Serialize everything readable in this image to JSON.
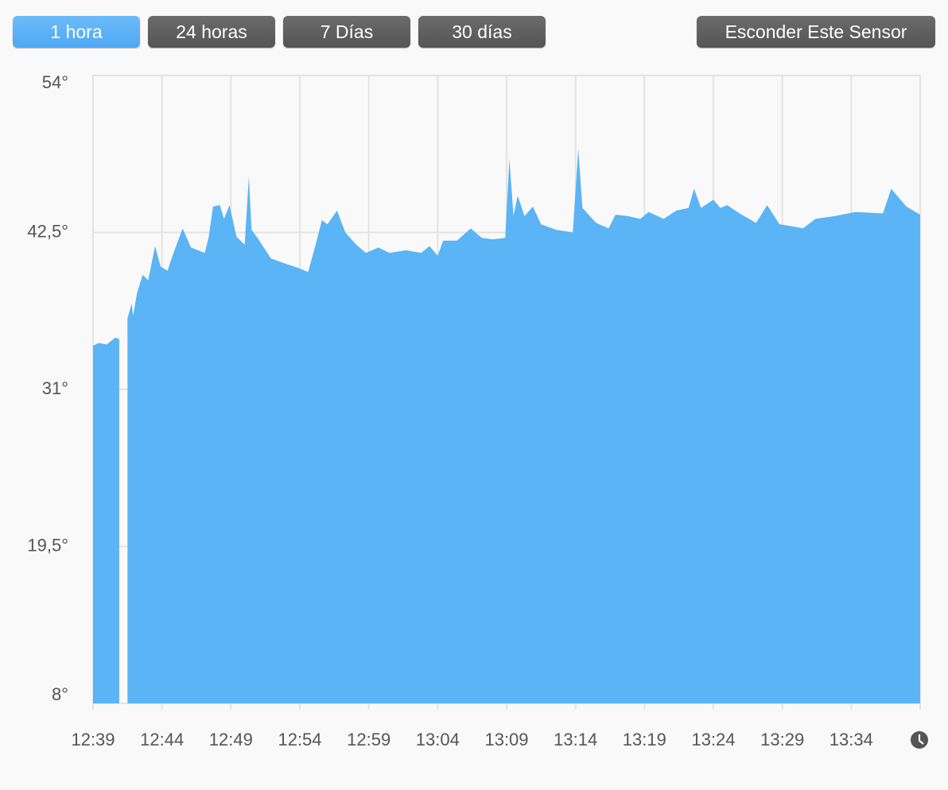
{
  "buttons": [
    {
      "label": "1 hora",
      "active": true
    },
    {
      "label": "24 horas",
      "active": false
    },
    {
      "label": "7 Días",
      "active": false
    },
    {
      "label": "30 días",
      "active": false
    }
  ],
  "hide_button": "Esconder Este Sensor",
  "chart_data": {
    "type": "area",
    "color": "#5ab4f5",
    "grid": true,
    "x": [
      759.0,
      759.4,
      760.0,
      760.6,
      760.9,
      761.2,
      761.5,
      761.8,
      761.9,
      762.2,
      762.6,
      763.0,
      763.5,
      763.9,
      764.4,
      764.8,
      765.5,
      766.1,
      767.1,
      767.4,
      767.7,
      768.2,
      768.5,
      768.9,
      769.4,
      770.0,
      770.3,
      770.5,
      771.0,
      771.9,
      773.0,
      773.9,
      774.6,
      775.2,
      775.6,
      776.0,
      776.7,
      777.3,
      778.1,
      778.8,
      779.7,
      780.5,
      781.7,
      782.8,
      783.4,
      784.0,
      784.4,
      785.4,
      786.4,
      787.2,
      788.0,
      788.9,
      789.2,
      789.5,
      789.8,
      790.3,
      790.9,
      791.5,
      792.6,
      793.8,
      794.2,
      794.5,
      795.5,
      796.4,
      796.9,
      797.8,
      798.7,
      799.3,
      800.4,
      801.3,
      802.2,
      802.6,
      803.1,
      804.0,
      804.5,
      805.0,
      805.9,
      807.1,
      807.9,
      808.8,
      810.0,
      810.5,
      811.4,
      812.8,
      814.3,
      816.3,
      816.9,
      818.0,
      819.0
    ],
    "values": [
      34.2,
      34.4,
      34.3,
      34.8,
      34.7,
      null,
      36.2,
      37.3,
      36.4,
      38.1,
      39.4,
      39.0,
      41.5,
      40.0,
      39.7,
      40.9,
      42.8,
      41.4,
      41.0,
      42.2,
      44.4,
      44.5,
      43.5,
      44.5,
      42.2,
      41.6,
      46.6,
      42.7,
      42.0,
      40.6,
      40.2,
      39.9,
      39.6,
      41.8,
      43.4,
      43.1,
      44.1,
      42.5,
      41.6,
      41.0,
      41.4,
      41.0,
      41.2,
      41.0,
      41.5,
      40.8,
      41.9,
      41.9,
      42.8,
      42.1,
      42.0,
      42.1,
      47.9,
      43.7,
      45.2,
      43.7,
      44.4,
      43.1,
      42.7,
      42.5,
      48.6,
      44.3,
      43.2,
      42.8,
      43.8,
      43.7,
      43.5,
      44.0,
      43.5,
      44.1,
      44.3,
      45.7,
      44.3,
      44.9,
      44.3,
      44.5,
      43.9,
      43.2,
      44.5,
      43.1,
      42.9,
      42.8,
      43.5,
      43.7,
      44.0,
      43.9,
      45.7,
      44.4,
      43.8
    ],
    "xlim": [
      759,
      819
    ],
    "xticks": [
      {
        "value": 759,
        "label": "12:39"
      },
      {
        "value": 764,
        "label": "12:44"
      },
      {
        "value": 769,
        "label": "12:49"
      },
      {
        "value": 774,
        "label": "12:54"
      },
      {
        "value": 779,
        "label": "12:59"
      },
      {
        "value": 784,
        "label": "13:04"
      },
      {
        "value": 789,
        "label": "13:09"
      },
      {
        "value": 794,
        "label": "13:14"
      },
      {
        "value": 799,
        "label": "13:19"
      },
      {
        "value": 804,
        "label": "13:24"
      },
      {
        "value": 809,
        "label": "13:29"
      },
      {
        "value": 814,
        "label": "13:34"
      },
      {
        "value": 819,
        "label": ""
      }
    ],
    "ylim": [
      8,
      54
    ],
    "yticks": [
      {
        "value": 54,
        "label": "54°"
      },
      {
        "value": 42.5,
        "label": "42,5°"
      },
      {
        "value": 31,
        "label": "31°"
      },
      {
        "value": 19.5,
        "label": "19,5°"
      },
      {
        "value": 8,
        "label": "8°"
      }
    ]
  }
}
